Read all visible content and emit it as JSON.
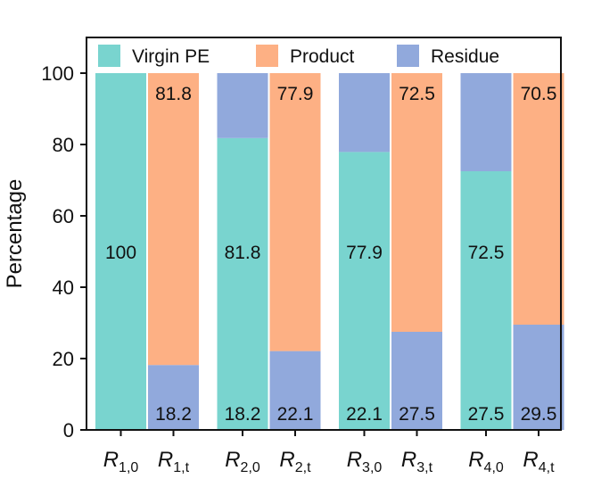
{
  "chart_data": {
    "type": "bar",
    "stacked": true,
    "title": "",
    "xlabel": "",
    "ylabel": "Percentage",
    "ylim": [
      0,
      110
    ],
    "yticks": [
      0,
      20,
      40,
      60,
      80,
      100
    ],
    "grid": false,
    "legend_position": "top",
    "categories": [
      {
        "base": "R",
        "sub": "1,0"
      },
      {
        "base": "R",
        "sub": "1,t"
      },
      {
        "base": "R",
        "sub": "2,0"
      },
      {
        "base": "R",
        "sub": "2,t"
      },
      {
        "base": "R",
        "sub": "3,0"
      },
      {
        "base": "R",
        "sub": "3,t"
      },
      {
        "base": "R",
        "sub": "4,0"
      },
      {
        "base": "R",
        "sub": "4,t"
      }
    ],
    "series": [
      {
        "name": "Virgin PE",
        "color": "#79d4cf",
        "values": [
          100,
          0,
          81.8,
          0,
          77.9,
          0,
          72.5,
          0
        ]
      },
      {
        "name": "Residue",
        "color": "#91a9dc",
        "values": [
          0,
          18.2,
          18.2,
          22.1,
          22.1,
          27.5,
          27.5,
          29.5
        ]
      },
      {
        "name": "Product",
        "color": "#fdb084",
        "values": [
          0,
          81.8,
          0,
          77.9,
          0,
          72.5,
          0,
          70.5
        ]
      }
    ],
    "legend": [
      {
        "name": "Virgin PE",
        "color": "#79d4cf"
      },
      {
        "name": "Product",
        "color": "#fdb084"
      },
      {
        "name": "Residue",
        "color": "#91a9dc"
      }
    ],
    "data_labels": [
      {
        "category": 0,
        "series": "Virgin PE",
        "text": "100"
      },
      {
        "category": 1,
        "series": "Product",
        "text": "81.8"
      },
      {
        "category": 1,
        "series": "Residue",
        "text": "18.2"
      },
      {
        "category": 2,
        "series": "Virgin PE",
        "text": "81.8"
      },
      {
        "category": 2,
        "series": "Residue",
        "text": "18.2"
      },
      {
        "category": 3,
        "series": "Product",
        "text": "77.9"
      },
      {
        "category": 3,
        "series": "Residue",
        "text": "22.1"
      },
      {
        "category": 4,
        "series": "Virgin PE",
        "text": "77.9"
      },
      {
        "category": 4,
        "series": "Residue",
        "text": "22.1"
      },
      {
        "category": 5,
        "series": "Product",
        "text": "72.5"
      },
      {
        "category": 5,
        "series": "Residue",
        "text": "27.5"
      },
      {
        "category": 6,
        "series": "Virgin PE",
        "text": "72.5"
      },
      {
        "category": 6,
        "series": "Residue",
        "text": "27.5"
      },
      {
        "category": 7,
        "series": "Product",
        "text": "70.5"
      },
      {
        "category": 7,
        "series": "Residue",
        "text": "29.5"
      }
    ]
  }
}
